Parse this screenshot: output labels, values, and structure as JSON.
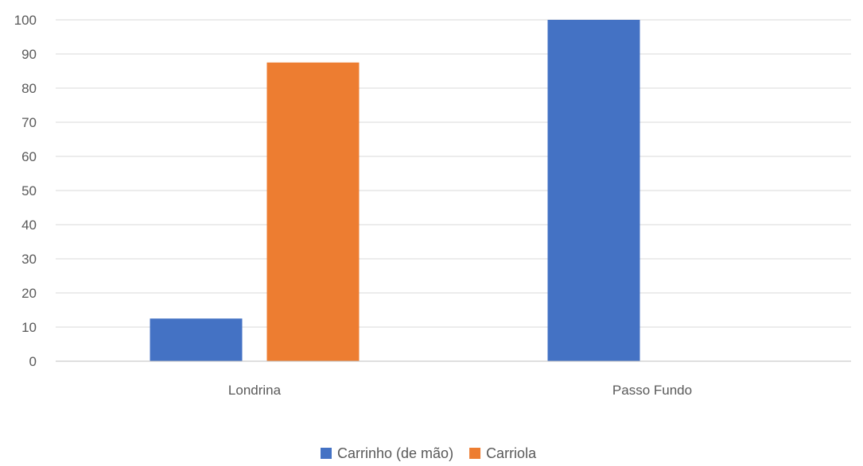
{
  "chart_data": {
    "type": "bar",
    "categories": [
      "Londrina",
      "Passo Fundo"
    ],
    "series": [
      {
        "name": "Carrinho (de mão)",
        "color": "#4472C4",
        "values": [
          12.5,
          100
        ]
      },
      {
        "name": "Carriola",
        "color": "#ED7D31",
        "values": [
          87.5,
          0
        ]
      }
    ],
    "ylim": [
      0,
      100
    ],
    "yticks": [
      0,
      10,
      20,
      30,
      40,
      50,
      60,
      70,
      80,
      90,
      100
    ],
    "grid": true,
    "legend_position": "bottom",
    "title": "",
    "xlabel": "",
    "ylabel": ""
  }
}
